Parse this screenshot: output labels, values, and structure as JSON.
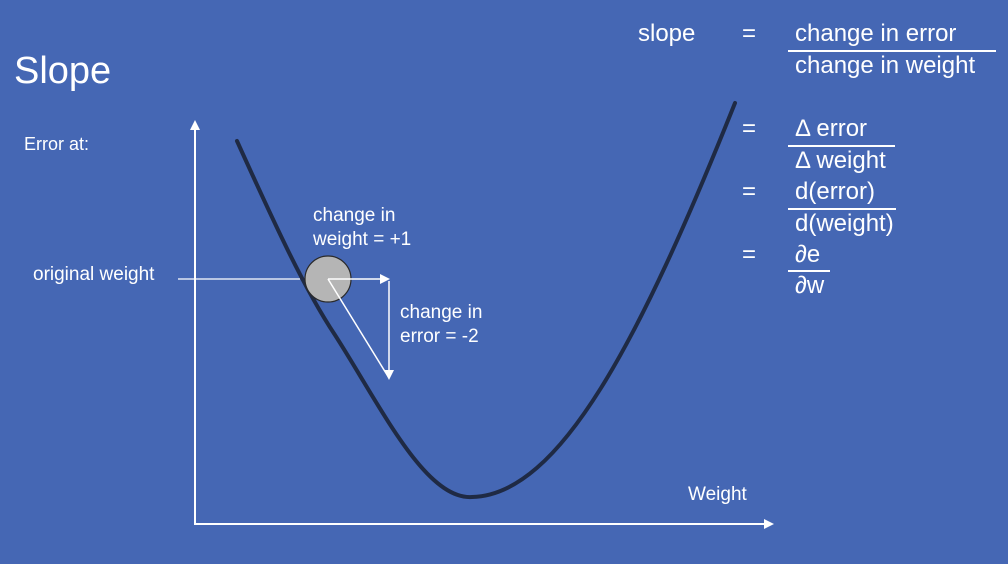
{
  "title": "Slope",
  "y_axis_label": "Error at:",
  "x_axis_label": "Weight",
  "original_weight_label": "original weight",
  "change_in_weight": {
    "line1": "change in",
    "line2": "weight = +1"
  },
  "change_in_error": {
    "line1": "change in",
    "line2": "error = -2"
  },
  "equations": {
    "lhs": "slope",
    "equals": "=",
    "row1": {
      "numerator": "change in error",
      "denominator": "change in weight"
    },
    "row2": {
      "numerator": "Δ error",
      "denominator": "Δ weight"
    },
    "row3": {
      "numerator": "d(error)",
      "denominator": "d(weight)"
    },
    "row4": {
      "numerator": "∂e",
      "denominator": "∂w"
    }
  },
  "colors": {
    "background": "#4567b4",
    "curve": "#1f2a44",
    "ball": "#b5b5b5",
    "text": "#ffffff"
  }
}
